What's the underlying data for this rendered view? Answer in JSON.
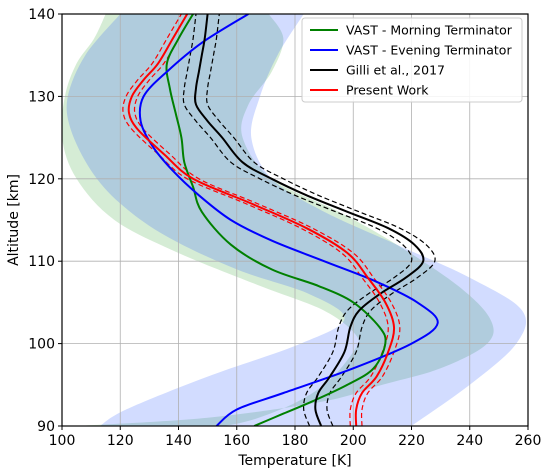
{
  "chart_data": {
    "type": "line",
    "xlabel": "Temperature [K]",
    "ylabel": "Altitude [km]",
    "xlim": [
      100,
      260
    ],
    "ylim": [
      90,
      140
    ],
    "xticks": [
      100,
      120,
      140,
      160,
      180,
      200,
      220,
      240,
      260
    ],
    "yticks": [
      90,
      100,
      110,
      120,
      130,
      140
    ],
    "grid": true,
    "legend_position": "top-right",
    "bands": [
      {
        "series": "VAST - Morning Terminator",
        "color": "#2ca02c",
        "upper": [
          [
            105,
            90
          ],
          [
            150,
            91
          ],
          [
            190,
            93
          ],
          [
            210,
            95
          ],
          [
            230,
            97
          ],
          [
            246,
            100
          ],
          [
            247,
            103
          ],
          [
            236,
            107
          ],
          [
            215,
            112
          ],
          [
            195,
            116
          ],
          [
            172,
            120
          ],
          [
            162,
            125
          ],
          [
            164,
            129
          ],
          [
            172,
            133
          ],
          [
            176,
            137
          ],
          [
            171,
            140
          ]
        ],
        "lower": [
          [
            125,
            90
          ],
          [
            155,
            90
          ],
          [
            175,
            92
          ],
          [
            190,
            95
          ],
          [
            200,
            99
          ],
          [
            201,
            101
          ],
          [
            190,
            104
          ],
          [
            168,
            107
          ],
          [
            140,
            111
          ],
          [
            118,
            115
          ],
          [
            105,
            120
          ],
          [
            100,
            125
          ],
          [
            101,
            130
          ],
          [
            105,
            134
          ],
          [
            111,
            137
          ],
          [
            115,
            140
          ]
        ]
      },
      {
        "series": "VAST - Evening Terminator",
        "color": "#1f4fff",
        "upper": [
          [
            220,
            90
          ],
          [
            240,
            95
          ],
          [
            256,
            100
          ],
          [
            258,
            104
          ],
          [
            240,
            108
          ],
          [
            215,
            112
          ],
          [
            190,
            116
          ],
          [
            172,
            120
          ],
          [
            165,
            125
          ],
          [
            168,
            130
          ],
          [
            174,
            135
          ],
          [
            183,
            140
          ]
        ],
        "lower": [
          [
            113,
            90
          ],
          [
            122,
            92
          ],
          [
            150,
            96
          ],
          [
            182,
            100
          ],
          [
            197,
            103
          ],
          [
            185,
            106
          ],
          [
            160,
            109
          ],
          [
            136,
            113
          ],
          [
            120,
            117
          ],
          [
            110,
            121
          ],
          [
            103,
            126
          ],
          [
            102,
            130
          ],
          [
            108,
            135
          ],
          [
            120,
            140
          ]
        ]
      }
    ],
    "series": [
      {
        "name": "VAST - Morning Terminator",
        "color": "#008000",
        "points": [
          [
            166,
            90
          ],
          [
            176,
            91.5
          ],
          [
            186,
            93
          ],
          [
            198,
            95
          ],
          [
            207,
            97
          ],
          [
            211,
            100
          ],
          [
            209,
            102
          ],
          [
            200,
            105
          ],
          [
            188,
            107
          ],
          [
            172,
            109
          ],
          [
            158,
            112
          ],
          [
            148,
            116
          ],
          [
            145,
            119
          ],
          [
            142,
            122
          ],
          [
            141,
            125
          ],
          [
            139,
            128
          ],
          [
            137,
            131
          ],
          [
            136,
            134
          ],
          [
            140,
            137
          ],
          [
            145,
            140
          ]
        ]
      },
      {
        "name": "VAST - Evening Terminator",
        "color": "#0000ff",
        "points": [
          [
            153,
            90
          ],
          [
            160,
            92
          ],
          [
            176,
            94
          ],
          [
            200,
            97
          ],
          [
            220,
            100
          ],
          [
            229,
            102.5
          ],
          [
            222,
            105
          ],
          [
            208,
            107.5
          ],
          [
            190,
            110
          ],
          [
            172,
            112.5
          ],
          [
            158,
            115
          ],
          [
            147,
            118
          ],
          [
            138,
            121
          ],
          [
            131,
            124
          ],
          [
            127,
            127
          ],
          [
            128,
            130
          ],
          [
            136,
            133
          ],
          [
            148,
            136.5
          ],
          [
            164,
            140
          ]
        ]
      },
      {
        "name": "Gilli et al., 2017",
        "color": "#000000",
        "points": [
          [
            189,
            90
          ],
          [
            187,
            92
          ],
          [
            188,
            94
          ],
          [
            192,
            96
          ],
          [
            197,
            99
          ],
          [
            199,
            102
          ],
          [
            202,
            104
          ],
          [
            209,
            106
          ],
          [
            218,
            108
          ],
          [
            224,
            110
          ],
          [
            221,
            112
          ],
          [
            212,
            114
          ],
          [
            198,
            116
          ],
          [
            184,
            118
          ],
          [
            172,
            120
          ],
          [
            162,
            122
          ],
          [
            155,
            125
          ],
          [
            150,
            127
          ],
          [
            146,
            129
          ],
          [
            146,
            131
          ],
          [
            147,
            133
          ],
          [
            148,
            135
          ],
          [
            149,
            137
          ],
          [
            150,
            140
          ]
        ]
      },
      {
        "name": "Present Work",
        "color": "#ff0000",
        "points": [
          [
            201,
            90
          ],
          [
            201,
            92
          ],
          [
            203,
            94
          ],
          [
            208,
            96
          ],
          [
            212,
            99
          ],
          [
            214,
            102
          ],
          [
            211,
            105
          ],
          [
            205,
            108
          ],
          [
            198,
            111
          ],
          [
            184,
            114
          ],
          [
            165,
            117
          ],
          [
            145,
            120
          ],
          [
            135,
            123
          ],
          [
            126,
            126
          ],
          [
            123,
            128
          ],
          [
            124,
            130
          ],
          [
            128,
            132
          ],
          [
            133,
            134
          ],
          [
            138,
            137
          ],
          [
            143,
            140
          ]
        ]
      }
    ],
    "uncertainty_lines": [
      {
        "series": "Gilli et al., 2017",
        "color": "#000000",
        "offset": 4,
        "style": "dashed"
      },
      {
        "series": "Present Work",
        "color": "#ff0000",
        "offset": 2,
        "style": "dashed"
      }
    ],
    "legend": [
      {
        "label": "VAST - Morning Terminator",
        "color": "#008000"
      },
      {
        "label": "VAST - Evening Terminator",
        "color": "#0000ff"
      },
      {
        "label": "Gilli et al., 2017",
        "color": "#000000"
      },
      {
        "label": "Present Work",
        "color": "#ff0000"
      }
    ]
  }
}
